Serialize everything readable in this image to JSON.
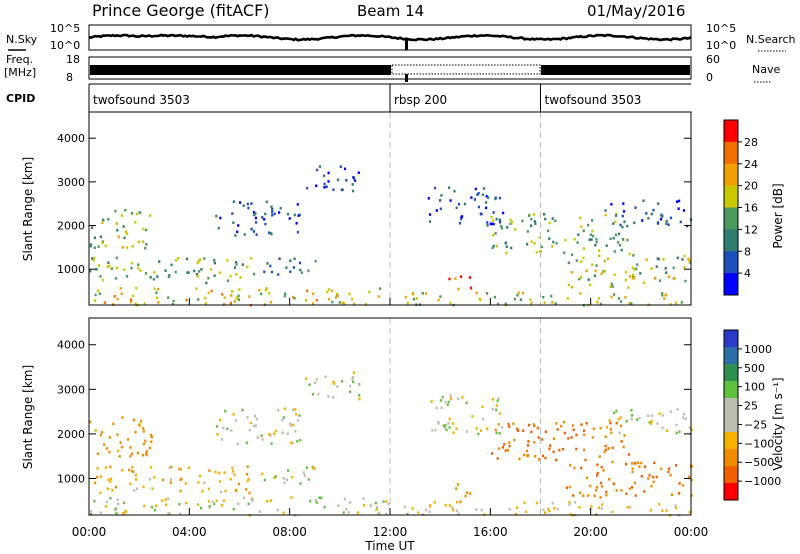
{
  "header": {
    "station": "Prince George (fitACF)",
    "beam": "Beam 14",
    "date": "01/May/2016"
  },
  "aux_labels": {
    "nsky": "N.Sky",
    "nsearch": "N.Search",
    "freq_line1": "Freq.",
    "freq_line2": "[MHz]",
    "nave": "Nave",
    "cpid": "CPID",
    "noise_top_left": "10^5",
    "noise_bottom_left": "10^0",
    "noise_top_right": "10^5",
    "noise_bottom_right": "10^0",
    "freq_top": "18",
    "freq_bottom": "8",
    "nave_top": "60",
    "nave_bottom": "0"
  },
  "cpid_segments": [
    {
      "start_hour": 0,
      "label": "twofsound 3503"
    },
    {
      "start_hour": 12,
      "label": "rbsp 200"
    },
    {
      "start_hour": 18,
      "label": "twofsound 3503"
    }
  ],
  "x_axis": {
    "title": "Time UT",
    "ticks": [
      "00:00",
      "04:00",
      "08:00",
      "12:00",
      "16:00",
      "20:00",
      "00:00"
    ],
    "range_hours": [
      0,
      24
    ]
  },
  "panels": {
    "power": {
      "ylabel": "Slant Range [km]",
      "yticks": [
        "1000",
        "2000",
        "3000",
        "4000"
      ],
      "cbar_title": "Power [dB]",
      "cbar_ticks": [
        "4",
        "8",
        "12",
        "16",
        "20",
        "24",
        "28"
      ],
      "cbar_colors": [
        "#0000ff",
        "#1c4fb8",
        "#2e7d6d",
        "#4b9a5a",
        "#c8c800",
        "#f0a000",
        "#f07000",
        "#ff0000"
      ]
    },
    "velocity": {
      "ylabel": "Slant Range [km]",
      "yticks": [
        "1000",
        "2000",
        "3000",
        "4000"
      ],
      "cbar_title": "Velocity [m s⁻¹]",
      "cbar_ticks": [
        "1000",
        "500",
        "100",
        "25",
        "−25",
        "−100",
        "−500",
        "−1000"
      ],
      "cbar_colors": [
        "#2a39c8",
        "#2c6fa8",
        "#2f8f4f",
        "#60c040",
        "#bdbdb3",
        "#bdbdb3",
        "#f5b000",
        "#f08c00",
        "#f06000",
        "#ff0000"
      ]
    }
  },
  "chart_data": {
    "type": "heatmap",
    "x_unit": "hours UT",
    "y_unit": "km",
    "ylim": [
      180,
      4600
    ],
    "xlim": [
      0,
      24
    ],
    "scatter_regions": [
      {
        "t0": 0.0,
        "t1": 12.0,
        "r0": 200,
        "r1": 600,
        "pow": 20,
        "vel": 0
      },
      {
        "t0": 0.0,
        "t1": 6.5,
        "r0": 700,
        "r1": 1300,
        "pow": 14,
        "vel": -80
      },
      {
        "t0": 0.0,
        "t1": 2.5,
        "r0": 1500,
        "r1": 2400,
        "pow": 16,
        "vel": -150
      },
      {
        "t0": 6.5,
        "t1": 9.0,
        "r0": 900,
        "r1": 1300,
        "pow": 10,
        "vel": 0
      },
      {
        "t0": 5.0,
        "t1": 8.5,
        "r0": 1800,
        "r1": 2600,
        "pow": 6,
        "vel": 0
      },
      {
        "t0": 8.5,
        "t1": 10.8,
        "r0": 2800,
        "r1": 3400,
        "pow": 6,
        "vel": 0
      },
      {
        "t0": 12.5,
        "t1": 24.0,
        "r0": 200,
        "r1": 500,
        "pow": 18,
        "vel": -30
      },
      {
        "t0": 14.3,
        "t1": 15.2,
        "r0": 500,
        "r1": 900,
        "pow": 26,
        "vel": -300
      },
      {
        "t0": 13.5,
        "t1": 16.5,
        "r0": 2000,
        "r1": 2900,
        "pow": 6,
        "vel": 0
      },
      {
        "t0": 16.0,
        "t1": 21.5,
        "r0": 1400,
        "r1": 2300,
        "pow": 14,
        "vel": -500
      },
      {
        "t0": 19.0,
        "t1": 24.0,
        "r0": 600,
        "r1": 1400,
        "pow": 16,
        "vel": -500
      },
      {
        "t0": 20.5,
        "t1": 24.0,
        "r0": 2000,
        "r1": 2600,
        "pow": 6,
        "vel": 0
      }
    ],
    "mode_boundaries_hours": [
      12,
      18
    ]
  }
}
